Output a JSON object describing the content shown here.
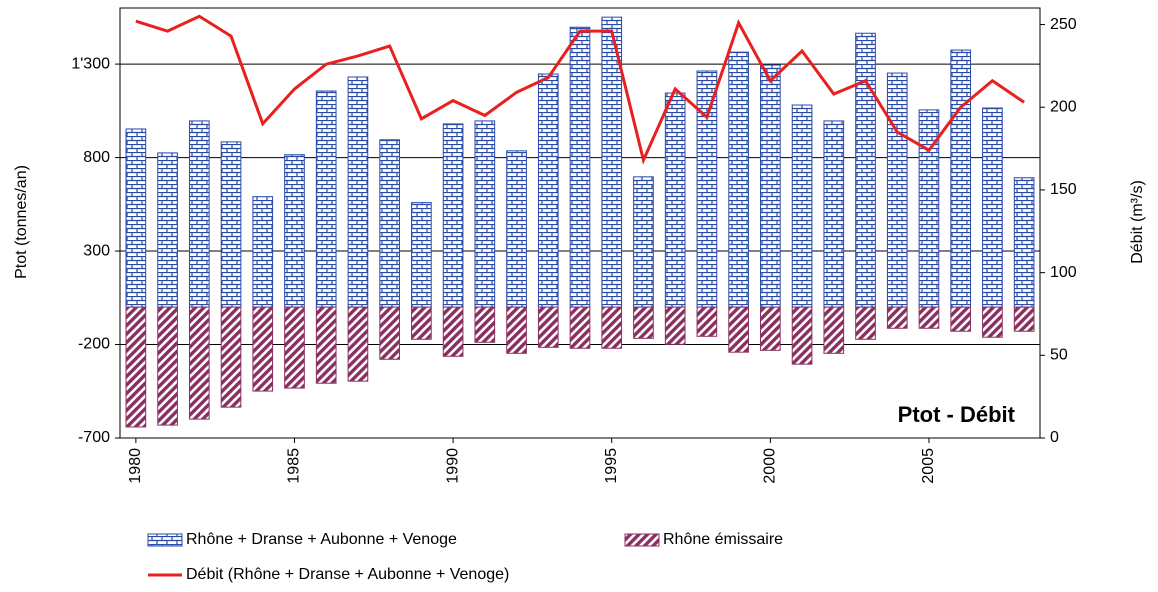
{
  "chart_data": {
    "type": "bar-line",
    "title": "Ptot - Débit",
    "y_label": "Ptot (tonnes/an)",
    "y2_label": "Débit (m³/s)",
    "x": [
      1980,
      1981,
      1982,
      1983,
      1984,
      1985,
      1986,
      1987,
      1988,
      1989,
      1990,
      1991,
      1992,
      1993,
      1994,
      1995,
      1996,
      1997,
      1998,
      1999,
      2000,
      2001,
      2002,
      2003,
      2004,
      2005,
      2006,
      2007,
      2008
    ],
    "xlim": [
      1979.5,
      2008.5
    ],
    "xticks": [
      1980,
      1985,
      1990,
      1995,
      2000,
      2005
    ],
    "ylim": [
      -700,
      1600
    ],
    "yticks": [
      -700,
      -200,
      300,
      800,
      {
        "value": 1300,
        "label": "1'300"
      }
    ],
    "y2lim": [
      0,
      260
    ],
    "y2ticks": [
      0,
      50,
      100,
      150,
      200,
      250
    ],
    "grid": true,
    "series": [
      {
        "name": "Rhône + Dranse + Aubonne + Venoge",
        "type": "bar",
        "color": "#2a4aa8",
        "values": [
          953,
          825,
          996,
          884,
          591,
          815,
          1156,
          1231,
          895,
          559,
          980,
          996,
          836,
          1247,
          1497,
          1551,
          697,
          1145,
          1263,
          1364,
          1295,
          1081,
          996,
          1465,
          1252,
          1055,
          1375,
          1065,
          692
        ]
      },
      {
        "name": "Rhône émissaire",
        "type": "bar",
        "color": "#8a3060",
        "values": [
          -641,
          -631,
          -599,
          -535,
          -449,
          -433,
          -407,
          -396,
          -279,
          -172,
          -263,
          -188,
          -247,
          -215,
          -220,
          -220,
          -167,
          -199,
          -156,
          -241,
          -231,
          -305,
          -247,
          -172,
          -113,
          -113,
          -129,
          -161,
          -129
        ]
      },
      {
        "name": "Débit (Rhône + Dranse + Aubonne + Venoge)",
        "type": "line",
        "axis": "y2",
        "color": "#e8201e",
        "values": [
          252,
          246,
          255,
          243,
          190,
          211,
          226,
          231,
          237,
          193,
          204,
          195,
          209,
          218,
          246,
          246,
          168,
          211,
          194,
          251,
          216,
          234,
          208,
          216,
          185,
          174,
          200,
          216,
          203
        ]
      }
    ]
  }
}
